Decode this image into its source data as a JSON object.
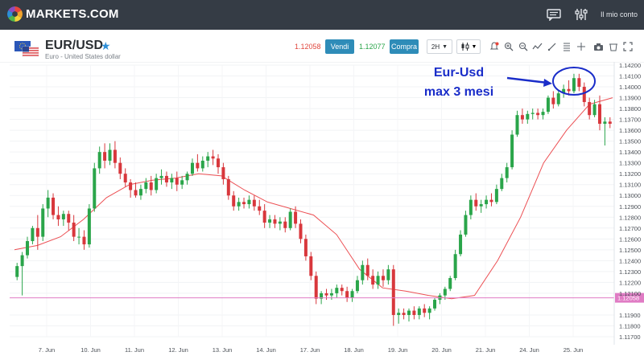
{
  "brand": {
    "name": "MARKETS.COM"
  },
  "topbar": {
    "chat_icon": "chat-icon",
    "settings_icon": "sliders-icon",
    "account_label": "Il mio conto"
  },
  "instrument": {
    "pair": "EUR/USD",
    "subtitle": "Euro - United States dollar",
    "sell_price": "1.12058",
    "sell_label": "Vendi",
    "buy_price": "1.12077",
    "buy_label": "Compra",
    "timeframe": "2H"
  },
  "toolbar_icons": [
    "alert-icon",
    "zoom-in-icon",
    "zoom-out-icon",
    "indicator-icon",
    "draw-line-icon",
    "fibonacci-icon",
    "crosshair-icon",
    "camera-icon",
    "clear-icon",
    "fullscreen-icon"
  ],
  "colors": {
    "topbar": "#353c45",
    "sell": "#e0473e",
    "buy": "#2aa54a",
    "button": "#2e8cb8",
    "candle_up": "#2aa54a",
    "candle_down": "#d8373c",
    "ma_line": "#ec4f53",
    "price_line": "#e07bc4",
    "annotation": "#1a2dc9"
  },
  "annotation": {
    "line1": "Eur-Usd",
    "line2": "max 3 mesi"
  },
  "chart_data": {
    "type": "candlestick",
    "ylim": [
      1.117,
      1.142
    ],
    "y_ticks": [
      "1.14200",
      "1.14100",
      "1.14000",
      "1.13900",
      "1.13800",
      "1.13700",
      "1.13600",
      "1.13500",
      "1.13400",
      "1.13300",
      "1.13200",
      "1.13100",
      "1.13000",
      "1.12900",
      "1.12800",
      "1.12700",
      "1.12600",
      "1.12500",
      "1.12400",
      "1.12300",
      "1.12200",
      "1.12100",
      "1.11900",
      "1.11800",
      "1.11700"
    ],
    "x_labels": [
      "7. Jun",
      "10. Jun",
      "11. Jun",
      "12. Jun",
      "13. Jun",
      "14. Jun",
      "17. Jun",
      "18. Jun",
      "19. Jun",
      "20. Jun",
      "21. Jun",
      "24. Jun",
      "25. Jun"
    ],
    "current_price": 1.12058,
    "current_price_label": "1.12058",
    "ohlc": [
      [
        1.1225,
        1.1238,
        1.1222,
        1.1235
      ],
      [
        1.1235,
        1.1248,
        1.1208,
        1.1245
      ],
      [
        1.1245,
        1.1262,
        1.1242,
        1.1258
      ],
      [
        1.1258,
        1.1272,
        1.1255,
        1.127
      ],
      [
        1.127,
        1.1282,
        1.125,
        1.1262
      ],
      [
        1.1262,
        1.1292,
        1.1258,
        1.1288
      ],
      [
        1.1288,
        1.1305,
        1.128,
        1.1298
      ],
      [
        1.1298,
        1.1302,
        1.1278,
        1.1282
      ],
      [
        1.1282,
        1.129,
        1.1272,
        1.1278
      ],
      [
        1.1278,
        1.1286,
        1.1272,
        1.1283
      ],
      [
        1.1283,
        1.1286,
        1.1268,
        1.1275
      ],
      [
        1.1275,
        1.1282,
        1.1258,
        1.1262
      ],
      [
        1.1262,
        1.127,
        1.1255,
        1.1262
      ],
      [
        1.1262,
        1.1268,
        1.125,
        1.1255
      ],
      [
        1.1255,
        1.1292,
        1.1252,
        1.1288
      ],
      [
        1.1288,
        1.133,
        1.1285,
        1.1325
      ],
      [
        1.1325,
        1.1345,
        1.132,
        1.134
      ],
      [
        1.134,
        1.1348,
        1.1325,
        1.1332
      ],
      [
        1.1332,
        1.1348,
        1.1328,
        1.1342
      ],
      [
        1.1342,
        1.135,
        1.1325,
        1.133
      ],
      [
        1.133,
        1.1335,
        1.1315,
        1.132
      ],
      [
        1.132,
        1.1325,
        1.1308,
        1.1312
      ],
      [
        1.1312,
        1.1315,
        1.1298,
        1.1305
      ],
      [
        1.1305,
        1.1312,
        1.1298,
        1.13
      ],
      [
        1.13,
        1.131,
        1.1296,
        1.1306
      ],
      [
        1.1306,
        1.1316,
        1.1302,
        1.1312
      ],
      [
        1.1312,
        1.1318,
        1.13,
        1.1305
      ],
      [
        1.1305,
        1.132,
        1.1302,
        1.1316
      ],
      [
        1.1316,
        1.1324,
        1.131,
        1.1318
      ],
      [
        1.1318,
        1.1322,
        1.1308,
        1.1312
      ],
      [
        1.1312,
        1.132,
        1.1306,
        1.1316
      ],
      [
        1.1316,
        1.1322,
        1.1304,
        1.131
      ],
      [
        1.131,
        1.1318,
        1.1306,
        1.1314
      ],
      [
        1.1314,
        1.1322,
        1.131,
        1.132
      ],
      [
        1.132,
        1.1334,
        1.1318,
        1.133
      ],
      [
        1.133,
        1.1338,
        1.1322,
        1.1325
      ],
      [
        1.1325,
        1.1336,
        1.1322,
        1.1332
      ],
      [
        1.1332,
        1.134,
        1.1326,
        1.1336
      ],
      [
        1.1336,
        1.1342,
        1.1328,
        1.1334
      ],
      [
        1.1334,
        1.1338,
        1.132,
        1.1326
      ],
      [
        1.1326,
        1.133,
        1.131,
        1.1315
      ],
      [
        1.1315,
        1.1318,
        1.1296,
        1.13
      ],
      [
        1.13,
        1.1304,
        1.1286,
        1.129
      ],
      [
        1.129,
        1.1298,
        1.1286,
        1.1294
      ],
      [
        1.1294,
        1.1298,
        1.1288,
        1.1292
      ],
      [
        1.1292,
        1.13,
        1.1288,
        1.1296
      ],
      [
        1.1296,
        1.13,
        1.1286,
        1.129
      ],
      [
        1.129,
        1.1296,
        1.1282,
        1.1286
      ],
      [
        1.1286,
        1.1292,
        1.127,
        1.1275
      ],
      [
        1.1275,
        1.1282,
        1.127,
        1.1278
      ],
      [
        1.1278,
        1.1282,
        1.127,
        1.1274
      ],
      [
        1.1274,
        1.128,
        1.1268,
        1.1276
      ],
      [
        1.1276,
        1.128,
        1.1266,
        1.127
      ],
      [
        1.127,
        1.1288,
        1.1268,
        1.1285
      ],
      [
        1.1285,
        1.129,
        1.127,
        1.1274
      ],
      [
        1.1274,
        1.1278,
        1.1256,
        1.126
      ],
      [
        1.126,
        1.1264,
        1.124,
        1.1244
      ],
      [
        1.1244,
        1.1248,
        1.1222,
        1.1226
      ],
      [
        1.1226,
        1.123,
        1.12,
        1.1205
      ],
      [
        1.1205,
        1.1212,
        1.12,
        1.121
      ],
      [
        1.121,
        1.1214,
        1.1204,
        1.1208
      ],
      [
        1.1208,
        1.1214,
        1.1204,
        1.121
      ],
      [
        1.121,
        1.1218,
        1.1206,
        1.1215
      ],
      [
        1.1215,
        1.1218,
        1.1208,
        1.1212
      ],
      [
        1.1212,
        1.1216,
        1.1202,
        1.1206
      ],
      [
        1.1206,
        1.1214,
        1.1202,
        1.1212
      ],
      [
        1.1212,
        1.1226,
        1.121,
        1.1222
      ],
      [
        1.1222,
        1.124,
        1.1218,
        1.1236
      ],
      [
        1.1236,
        1.1242,
        1.1222,
        1.1226
      ],
      [
        1.1226,
        1.1232,
        1.1214,
        1.1218
      ],
      [
        1.1218,
        1.123,
        1.1214,
        1.1226
      ],
      [
        1.1226,
        1.1232,
        1.1216,
        1.1222
      ],
      [
        1.1222,
        1.1236,
        1.1218,
        1.1232
      ],
      [
        1.1232,
        1.1236,
        1.118,
        1.119
      ],
      [
        1.119,
        1.1196,
        1.1182,
        1.1192
      ],
      [
        1.1192,
        1.1196,
        1.1186,
        1.119
      ],
      [
        1.119,
        1.1196,
        1.1184,
        1.1194
      ],
      [
        1.1194,
        1.1198,
        1.1186,
        1.119
      ],
      [
        1.119,
        1.1198,
        1.1186,
        1.1196
      ],
      [
        1.1196,
        1.12,
        1.1188,
        1.1192
      ],
      [
        1.1192,
        1.1198,
        1.1186,
        1.1196
      ],
      [
        1.1196,
        1.1206,
        1.1194,
        1.1204
      ],
      [
        1.1204,
        1.121,
        1.12,
        1.1208
      ],
      [
        1.1208,
        1.1216,
        1.1204,
        1.1214
      ],
      [
        1.1214,
        1.1226,
        1.1212,
        1.1224
      ],
      [
        1.1224,
        1.125,
        1.1222,
        1.1246
      ],
      [
        1.1246,
        1.1268,
        1.1244,
        1.1264
      ],
      [
        1.1264,
        1.1286,
        1.1262,
        1.1282
      ],
      [
        1.1282,
        1.13,
        1.1278,
        1.1296
      ],
      [
        1.1296,
        1.1302,
        1.1286,
        1.129
      ],
      [
        1.129,
        1.1296,
        1.1284,
        1.1292
      ],
      [
        1.1292,
        1.13,
        1.1288,
        1.1296
      ],
      [
        1.1296,
        1.1302,
        1.129,
        1.1294
      ],
      [
        1.1294,
        1.131,
        1.1292,
        1.1306
      ],
      [
        1.1306,
        1.132,
        1.1304,
        1.1316
      ],
      [
        1.1316,
        1.133,
        1.1312,
        1.1326
      ],
      [
        1.1326,
        1.136,
        1.1324,
        1.1356
      ],
      [
        1.1356,
        1.1378,
        1.1354,
        1.1374
      ],
      [
        1.1374,
        1.138,
        1.1366,
        1.137
      ],
      [
        1.137,
        1.1378,
        1.1366,
        1.1375
      ],
      [
        1.1375,
        1.138,
        1.137,
        1.1376
      ],
      [
        1.1376,
        1.138,
        1.137,
        1.1374
      ],
      [
        1.1374,
        1.138,
        1.137,
        1.1377
      ],
      [
        1.1377,
        1.1392,
        1.1375,
        1.139
      ],
      [
        1.139,
        1.1396,
        1.138,
        1.1384
      ],
      [
        1.1384,
        1.1396,
        1.1382,
        1.1394
      ],
      [
        1.1394,
        1.1402,
        1.139,
        1.1398
      ],
      [
        1.1398,
        1.1406,
        1.1392,
        1.1396
      ],
      [
        1.1396,
        1.1412,
        1.1394,
        1.1408
      ],
      [
        1.1408,
        1.1412,
        1.1396,
        1.14
      ],
      [
        1.14,
        1.1404,
        1.1382,
        1.1386
      ],
      [
        1.1386,
        1.139,
        1.137,
        1.1374
      ],
      [
        1.1374,
        1.1388,
        1.1372,
        1.1384
      ],
      [
        1.1384,
        1.1392,
        1.136,
        1.1366
      ],
      [
        1.1366,
        1.1372,
        1.1346,
        1.1368
      ],
      [
        1.1368,
        1.1372,
        1.1362,
        1.1366
      ]
    ],
    "ma": [
      1.125,
      1.1254,
      1.1262,
      1.1278,
      1.1298,
      1.131,
      1.1314,
      1.1316,
      1.132,
      1.1318,
      1.1305,
      1.1294,
      1.1288,
      1.1282,
      1.1264,
      1.1232,
      1.1215,
      1.1212,
      1.1208,
      1.1205,
      1.1208,
      1.124,
      1.128,
      1.133,
      1.136,
      1.1384,
      1.139
    ]
  }
}
